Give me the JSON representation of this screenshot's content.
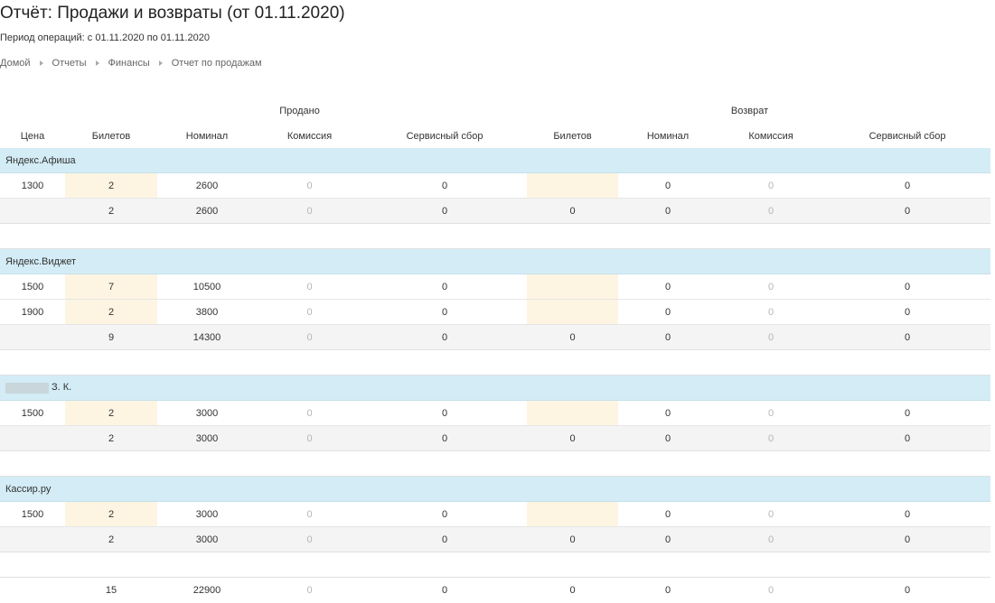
{
  "title": "Отчёт: Продажи и возвраты (от 01.11.2020)",
  "period": "Период операций: с 01.11.2020 по 01.11.2020",
  "breadcrumb": [
    "Домой",
    "Отчеты",
    "Финансы",
    "Отчет по продажам"
  ],
  "table": {
    "group_headers": {
      "sold": "Продано",
      "returned": "Возврат"
    },
    "columns": [
      "Цена",
      "Билетов",
      "Номинал",
      "Комиссия",
      "Сервисный сбор",
      "Билетов",
      "Номинал",
      "Комиссия",
      "Сервисный сбор"
    ],
    "groups": [
      {
        "name": "Яндекс.Афиша",
        "rows": [
          [
            "1300",
            "2",
            "2600",
            "0",
            "0",
            "",
            "0",
            "0",
            "0"
          ]
        ],
        "subtotal": [
          "",
          "2",
          "2600",
          "0",
          "0",
          "0",
          "0",
          "0",
          "0"
        ]
      },
      {
        "name": "Яндекс.Виджет",
        "rows": [
          [
            "1500",
            "7",
            "10500",
            "0",
            "0",
            "",
            "0",
            "0",
            "0"
          ],
          [
            "1900",
            "2",
            "3800",
            "0",
            "0",
            "",
            "0",
            "0",
            "0"
          ]
        ],
        "subtotal": [
          "",
          "9",
          "14300",
          "0",
          "0",
          "0",
          "0",
          "0",
          "0"
        ]
      },
      {
        "name": "З. К.",
        "redacted": true,
        "rows": [
          [
            "1500",
            "2",
            "3000",
            "0",
            "0",
            "",
            "0",
            "0",
            "0"
          ]
        ],
        "subtotal": [
          "",
          "2",
          "3000",
          "0",
          "0",
          "0",
          "0",
          "0",
          "0"
        ]
      },
      {
        "name": "Кассир.ру",
        "rows": [
          [
            "1500",
            "2",
            "3000",
            "0",
            "0",
            "",
            "0",
            "0",
            "0"
          ]
        ],
        "subtotal": [
          "",
          "2",
          "3000",
          "0",
          "0",
          "0",
          "0",
          "0",
          "0"
        ]
      }
    ],
    "total": [
      "",
      "15",
      "22900",
      "0",
      "0",
      "0",
      "0",
      "0",
      "0"
    ]
  }
}
